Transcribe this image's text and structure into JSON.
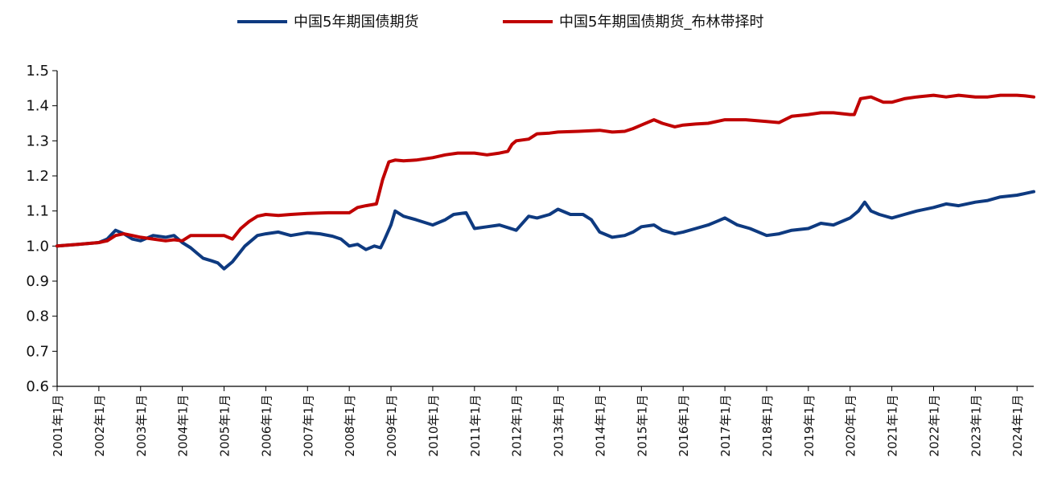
{
  "chart_data": {
    "type": "line",
    "xlabel": "",
    "ylabel": "",
    "ylim": [
      0.6,
      1.5
    ],
    "yticks": [
      "0.6",
      "0.7",
      "0.8",
      "0.9",
      "1.0",
      "1.1",
      "1.2",
      "1.3",
      "1.4",
      "1.5"
    ],
    "xlim": [
      2001.0,
      2024.4
    ],
    "xticks": [
      "2001年1月",
      "2002年1月",
      "2003年1月",
      "2004年1月",
      "2005年1月",
      "2006年1月",
      "2007年1月",
      "2008年1月",
      "2009年1月",
      "2010年1月",
      "2011年1月",
      "2012年1月",
      "2013年1月",
      "2014年1月",
      "2015年1月",
      "2016年1月",
      "2017年1月",
      "2018年1月",
      "2019年1月",
      "2020年1月",
      "2021年1月",
      "2022年1月",
      "2023年1月",
      "2024年1月"
    ],
    "grid": false,
    "legend_position": "top-center",
    "series": [
      {
        "name": "中国5年期国债期货",
        "color": "#0e3a80",
        "x": [
          2001.0,
          2001.5,
          2002.0,
          2002.2,
          2002.4,
          2002.6,
          2002.8,
          2003.0,
          2003.3,
          2003.6,
          2003.8,
          2004.0,
          2004.2,
          2004.35,
          2004.5,
          2004.7,
          2004.85,
          2005.0,
          2005.2,
          2005.5,
          2005.8,
          2006.0,
          2006.3,
          2006.6,
          2007.0,
          2007.3,
          2007.6,
          2007.8,
          2008.0,
          2008.2,
          2008.4,
          2008.6,
          2008.75,
          2008.85,
          2009.0,
          2009.1,
          2009.3,
          2009.6,
          2010.0,
          2010.3,
          2010.5,
          2010.8,
          2011.0,
          2011.3,
          2011.6,
          2012.0,
          2012.3,
          2012.5,
          2012.8,
          2013.0,
          2013.3,
          2013.6,
          2013.8,
          2014.0,
          2014.3,
          2014.6,
          2014.8,
          2015.0,
          2015.3,
          2015.5,
          2015.8,
          2016.0,
          2016.3,
          2016.6,
          2016.8,
          2017.0,
          2017.3,
          2017.6,
          2018.0,
          2018.3,
          2018.6,
          2019.0,
          2019.3,
          2019.6,
          2020.0,
          2020.2,
          2020.35,
          2020.5,
          2020.7,
          2021.0,
          2021.3,
          2021.6,
          2022.0,
          2022.3,
          2022.6,
          2023.0,
          2023.3,
          2023.6,
          2024.0,
          2024.2,
          2024.4
        ],
        "values": [
          1.0,
          1.005,
          1.01,
          1.02,
          1.045,
          1.035,
          1.02,
          1.015,
          1.03,
          1.025,
          1.03,
          1.01,
          0.995,
          0.98,
          0.965,
          0.958,
          0.952,
          0.935,
          0.955,
          1.0,
          1.03,
          1.035,
          1.04,
          1.03,
          1.038,
          1.035,
          1.028,
          1.02,
          1.0,
          1.005,
          0.99,
          1.0,
          0.995,
          1.02,
          1.06,
          1.1,
          1.085,
          1.075,
          1.06,
          1.075,
          1.09,
          1.095,
          1.05,
          1.055,
          1.06,
          1.045,
          1.085,
          1.08,
          1.09,
          1.105,
          1.09,
          1.09,
          1.075,
          1.04,
          1.025,
          1.03,
          1.04,
          1.055,
          1.06,
          1.045,
          1.035,
          1.04,
          1.05,
          1.06,
          1.07,
          1.08,
          1.06,
          1.05,
          1.03,
          1.035,
          1.045,
          1.05,
          1.065,
          1.06,
          1.08,
          1.1,
          1.125,
          1.1,
          1.09,
          1.08,
          1.09,
          1.1,
          1.11,
          1.12,
          1.115,
          1.125,
          1.13,
          1.14,
          1.145,
          1.15,
          1.155
        ]
      },
      {
        "name": "中国5年期国债期货_布林带择时",
        "color": "#c00000",
        "x": [
          2001.0,
          2001.5,
          2002.0,
          2002.2,
          2002.4,
          2002.6,
          2002.8,
          2003.0,
          2003.3,
          2003.6,
          2003.8,
          2004.0,
          2004.2,
          2004.5,
          2004.8,
          2005.0,
          2005.2,
          2005.4,
          2005.6,
          2005.8,
          2006.0,
          2006.3,
          2006.6,
          2007.0,
          2007.5,
          2008.0,
          2008.2,
          2008.4,
          2008.65,
          2008.8,
          2008.95,
          2009.1,
          2009.3,
          2009.6,
          2010.0,
          2010.3,
          2010.6,
          2011.0,
          2011.3,
          2011.6,
          2011.8,
          2011.9,
          2012.0,
          2012.3,
          2012.5,
          2012.8,
          2013.0,
          2013.5,
          2014.0,
          2014.3,
          2014.6,
          2014.8,
          2015.0,
          2015.3,
          2015.5,
          2015.8,
          2016.0,
          2016.3,
          2016.6,
          2016.8,
          2017.0,
          2017.5,
          2018.0,
          2018.3,
          2018.6,
          2019.0,
          2019.3,
          2019.6,
          2020.0,
          2020.1,
          2020.25,
          2020.5,
          2020.8,
          2021.0,
          2021.3,
          2021.6,
          2022.0,
          2022.3,
          2022.6,
          2023.0,
          2023.3,
          2023.6,
          2024.0,
          2024.2,
          2024.4
        ],
        "values": [
          1.0,
          1.005,
          1.01,
          1.015,
          1.03,
          1.035,
          1.03,
          1.025,
          1.02,
          1.015,
          1.018,
          1.015,
          1.03,
          1.03,
          1.03,
          1.03,
          1.02,
          1.05,
          1.07,
          1.085,
          1.09,
          1.087,
          1.09,
          1.093,
          1.095,
          1.095,
          1.11,
          1.115,
          1.12,
          1.19,
          1.24,
          1.245,
          1.243,
          1.245,
          1.252,
          1.26,
          1.265,
          1.265,
          1.26,
          1.265,
          1.27,
          1.29,
          1.3,
          1.305,
          1.32,
          1.322,
          1.325,
          1.327,
          1.33,
          1.325,
          1.327,
          1.335,
          1.345,
          1.36,
          1.35,
          1.34,
          1.345,
          1.348,
          1.35,
          1.355,
          1.36,
          1.36,
          1.355,
          1.352,
          1.37,
          1.375,
          1.38,
          1.38,
          1.375,
          1.375,
          1.42,
          1.425,
          1.41,
          1.41,
          1.42,
          1.425,
          1.43,
          1.425,
          1.43,
          1.425,
          1.425,
          1.43,
          1.43,
          1.428,
          1.425
        ]
      }
    ]
  }
}
